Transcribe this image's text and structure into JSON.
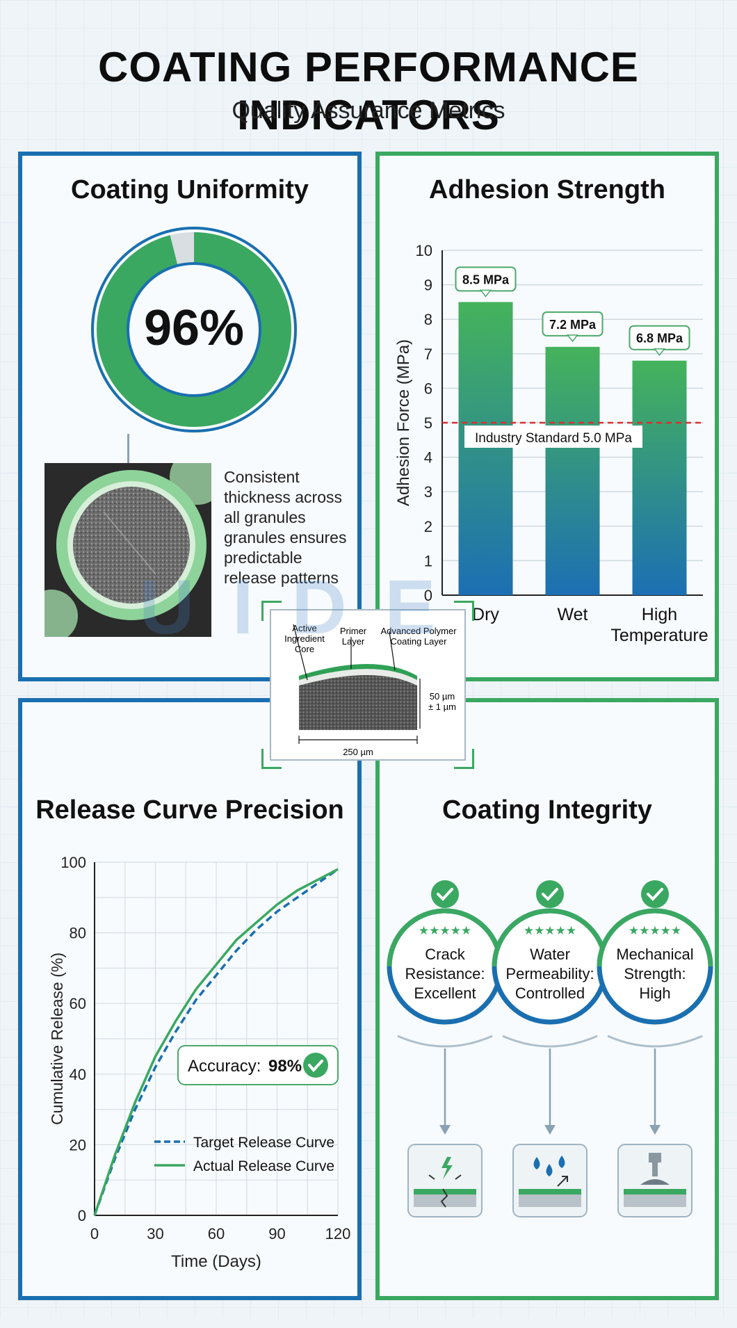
{
  "header": {
    "title": "COATING PERFORMANCE INDICATORS",
    "subtitle": "Quality Assurance Metrics"
  },
  "colors": {
    "blue": "#1a6fb0",
    "green": "#3aa861",
    "standard_line": "#d9302f"
  },
  "uniformity": {
    "title": "Coating Uniformity",
    "percent_label": "96%",
    "percent_value": 96,
    "description_lines": [
      "Consistent",
      "thickness across",
      "all granules",
      "granules ensures",
      "predictable",
      "release patterns"
    ]
  },
  "adhesion": {
    "title": "Adhesion Strength",
    "standard_label": "Industry Standard 5.0 MPa"
  },
  "release": {
    "title": "Release Curve Precision",
    "accuracy_label": "Accuracy:",
    "accuracy_value": "98%"
  },
  "integrity": {
    "title": "Coating Integrity",
    "items": [
      {
        "lines": [
          "Crack",
          "Resistance:",
          "Excellent"
        ],
        "icon": "crack-icon",
        "stars": "★★★★★"
      },
      {
        "lines": [
          "Water",
          "Permeability:",
          "Controlled"
        ],
        "icon": "water-drop-icon",
        "stars": "★★★★★"
      },
      {
        "lines": [
          "Mechanical",
          "Strength:",
          "High"
        ],
        "icon": "press-icon",
        "stars": "★★★★★"
      }
    ]
  },
  "crosssection": {
    "label_core": [
      "Active",
      "Ingredient",
      "Core"
    ],
    "label_primer": [
      "Primer",
      "Layer"
    ],
    "label_polymer": [
      "Advanced Polymer",
      "Coating Layer"
    ],
    "thickness": [
      "50 µm",
      "± 1 µm"
    ],
    "width": "250 µm"
  },
  "watermark": "U I D E",
  "chart_data": [
    {
      "type": "bar",
      "categories": [
        "Dry",
        "Wet",
        "High Temperature"
      ],
      "category_lines": [
        [
          "Dry"
        ],
        [
          "Wet"
        ],
        [
          "High",
          "Temperature"
        ]
      ],
      "values": [
        8.5,
        7.2,
        6.8
      ],
      "data_labels": [
        "8.5 MPa",
        "7.2 MPa",
        "6.8 MPa"
      ],
      "ylabel": "Adhesion Force (MPa)",
      "ylim": [
        0,
        10
      ],
      "yticks": [
        0,
        1,
        2,
        3,
        4,
        5,
        6,
        7,
        8,
        9,
        10
      ],
      "reference_line": 5.0,
      "grid": true
    },
    {
      "type": "line",
      "xlabel": "Time (Days)",
      "ylabel": "Cumulative Release (%)",
      "xlim": [
        0,
        120
      ],
      "ylim": [
        0,
        100
      ],
      "xticks": [
        0,
        30,
        60,
        90,
        120
      ],
      "yticks": [
        0,
        20,
        40,
        60,
        80,
        100
      ],
      "legend_position": "bottom-left",
      "grid": true,
      "series": [
        {
          "name": "Target Release Curve",
          "style": "dashed",
          "x": [
            0,
            10,
            20,
            30,
            40,
            50,
            60,
            70,
            80,
            90,
            100,
            110,
            120
          ],
          "y": [
            0,
            16,
            30,
            42,
            52,
            61,
            68,
            75,
            81,
            86,
            90,
            94,
            98
          ]
        },
        {
          "name": "Actual Release Curve",
          "style": "solid",
          "x": [
            0,
            10,
            20,
            30,
            40,
            50,
            60,
            70,
            80,
            90,
            100,
            110,
            120
          ],
          "y": [
            0,
            17,
            32,
            45,
            55,
            64,
            71,
            78,
            83,
            88,
            92,
            95,
            98
          ]
        }
      ]
    }
  ]
}
